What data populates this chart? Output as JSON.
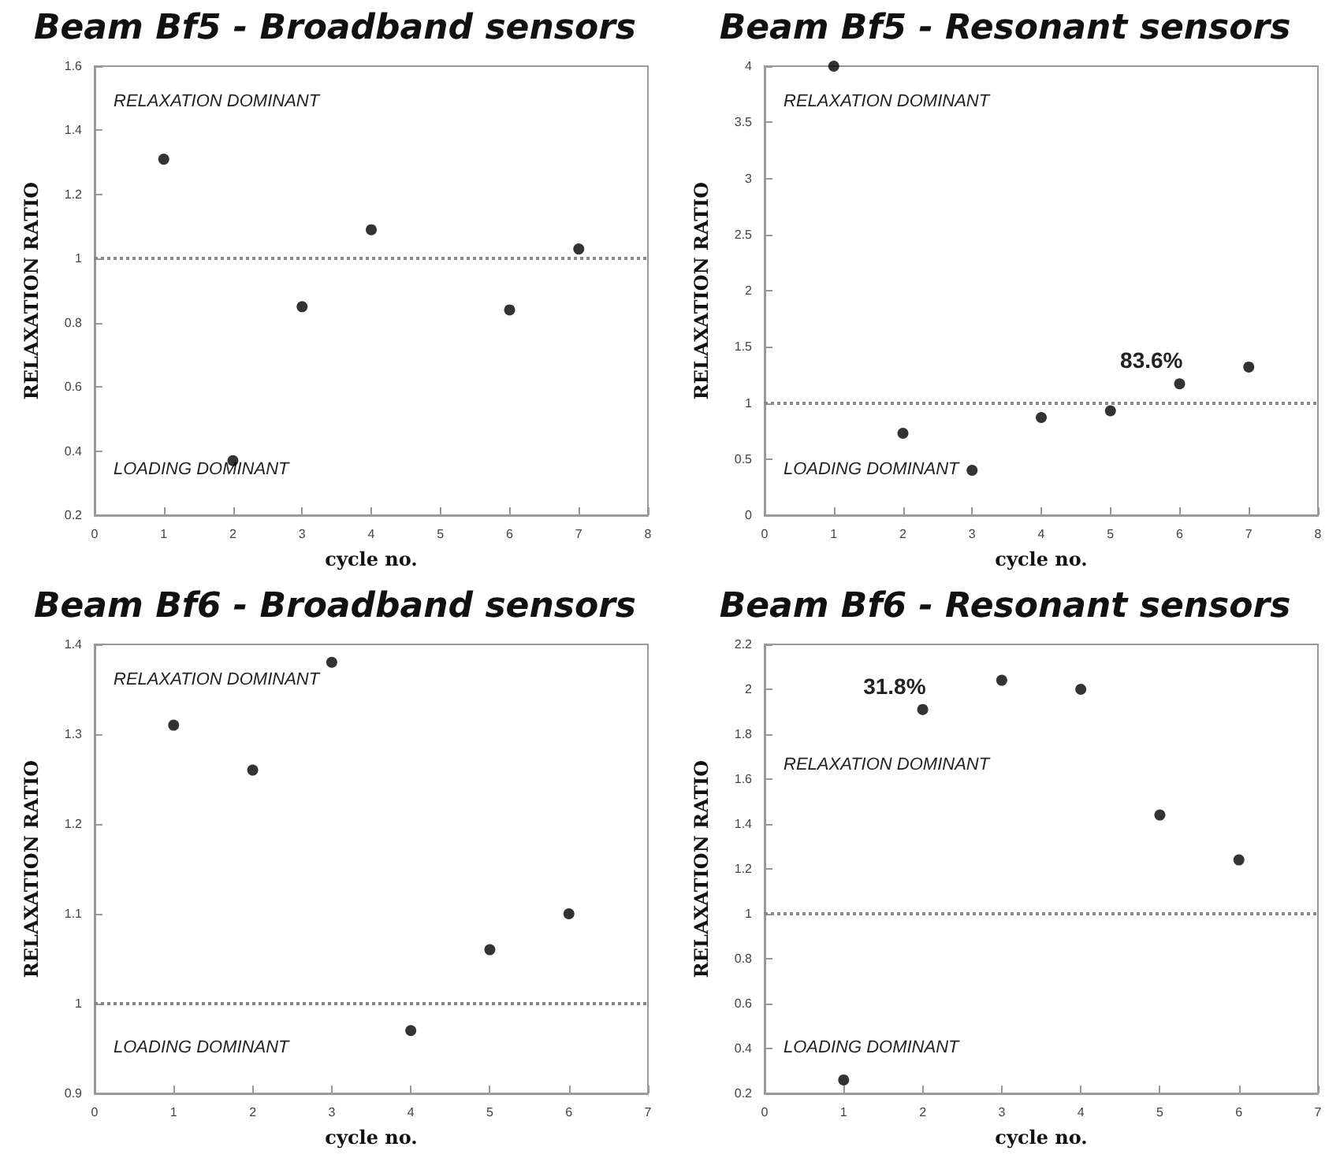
{
  "chart_data": [
    {
      "type": "scatter",
      "title": "Beam Bf5 - Broadband sensors",
      "xlabel": "cycle no.",
      "ylabel": "RELAXATION RATIO",
      "x": [
        1,
        2,
        3,
        4,
        6,
        7
      ],
      "series": [
        {
          "color": "#000000",
          "values": [
            1.31,
            0.37,
            0.85,
            1.09,
            0.84,
            1.03
          ]
        }
      ],
      "xlim": [
        0,
        8
      ],
      "xticks": [
        0,
        1,
        2,
        3,
        4,
        5,
        6,
        7,
        8
      ],
      "ylim": [
        0.2,
        1.6
      ],
      "yticks": [
        0.2,
        0.4,
        0.6,
        0.8,
        1,
        1.2,
        1.4,
        1.6
      ],
      "ref_lines": [
        {
          "axis": "y",
          "value": 1,
          "color": "#888888",
          "line_style": "dotted"
        }
      ],
      "annotations": [
        "RELAXATION DOMINANT",
        "LOADING DOMINANT"
      ],
      "marker": "circle",
      "grid": false
    },
    {
      "type": "scatter",
      "title": "Beam Bf5 - Resonant sensors",
      "xlabel": "cycle no.",
      "ylabel": "RELAXATION RATIO",
      "x": [
        1,
        2,
        3,
        4,
        5,
        6,
        7
      ],
      "series": [
        {
          "color": "#000000",
          "values": [
            4.0,
            0.73,
            0.4,
            0.87,
            0.93,
            1.17,
            1.32
          ]
        }
      ],
      "xlim": [
        0,
        8
      ],
      "xticks": [
        0,
        1,
        2,
        3,
        4,
        5,
        6,
        7,
        8
      ],
      "ylim": [
        0,
        4
      ],
      "yticks": [
        0,
        0.5,
        1,
        1.5,
        2,
        2.5,
        3,
        3.5,
        4
      ],
      "ref_lines": [
        {
          "axis": "y",
          "value": 1,
          "color": "#888888",
          "line_style": "dotted"
        }
      ],
      "annotations": [
        "RELAXATION DOMINANT",
        "LOADING DOMINANT",
        {
          "text": "83.6%",
          "x": 6,
          "y": 1.17
        }
      ],
      "marker": "circle",
      "grid": false
    },
    {
      "type": "scatter",
      "title": "Beam Bf6 - Broadband sensors",
      "xlabel": "cycle no.",
      "ylabel": "RELAXATION RATIO",
      "x": [
        1,
        2,
        3,
        4,
        5,
        6
      ],
      "series": [
        {
          "color": "#000000",
          "values": [
            1.31,
            1.26,
            1.38,
            0.97,
            1.06,
            1.1
          ]
        }
      ],
      "xlim": [
        0,
        7
      ],
      "xticks": [
        0,
        1,
        2,
        3,
        4,
        5,
        6,
        7
      ],
      "ylim": [
        0.9,
        1.4
      ],
      "yticks": [
        0.9,
        1,
        1.1,
        1.2,
        1.3,
        1.4
      ],
      "ref_lines": [
        {
          "axis": "y",
          "value": 1,
          "color": "#888888",
          "line_style": "dotted"
        }
      ],
      "annotations": [
        "RELAXATION DOMINANT",
        "LOADING DOMINANT"
      ],
      "marker": "circle",
      "grid": false
    },
    {
      "type": "scatter",
      "title": "Beam Bf6 - Resonant sensors",
      "xlabel": "cycle no.",
      "ylabel": "RELAXATION RATIO",
      "x": [
        1,
        2,
        3,
        4,
        5,
        6
      ],
      "series": [
        {
          "color": "#000000",
          "values": [
            0.26,
            1.91,
            2.04,
            2.0,
            1.44,
            1.24
          ]
        }
      ],
      "xlim": [
        0,
        7
      ],
      "xticks": [
        0,
        1,
        2,
        3,
        4,
        5,
        6,
        7
      ],
      "ylim": [
        0.2,
        2.2
      ],
      "yticks": [
        0.2,
        0.4,
        0.6,
        0.8,
        1,
        1.2,
        1.4,
        1.6,
        1.8,
        2,
        2.2
      ],
      "ref_lines": [
        {
          "axis": "y",
          "value": 1,
          "color": "#888888",
          "line_style": "dotted"
        }
      ],
      "annotations": [
        "RELAXATION DOMINANT",
        "LOADING DOMINANT",
        {
          "text": "31.8%",
          "x": 2,
          "y": 1.91
        }
      ],
      "marker": "circle",
      "grid": false
    }
  ]
}
